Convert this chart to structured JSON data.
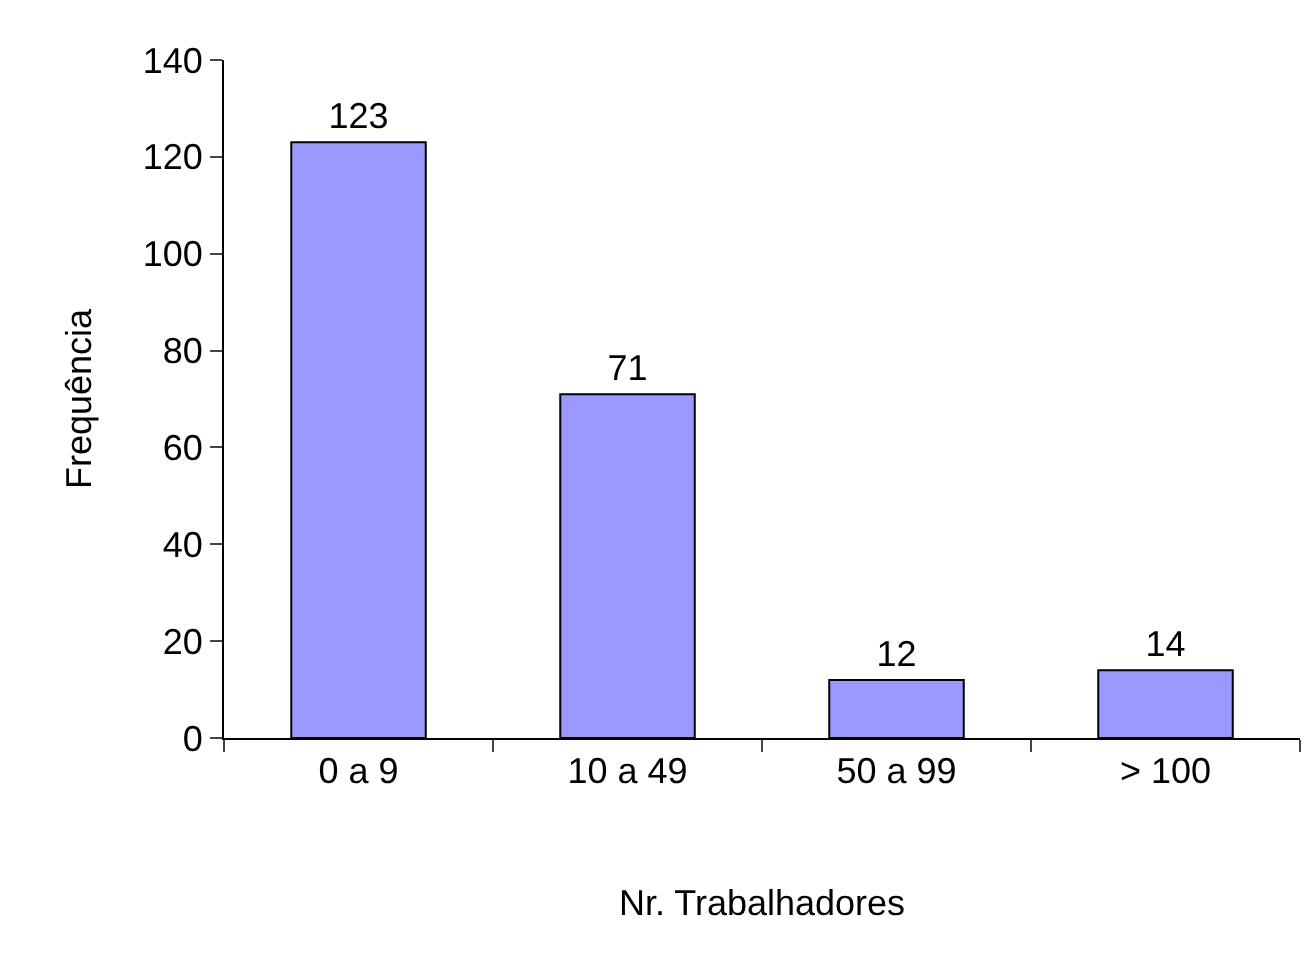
{
  "chart_data": {
    "type": "bar",
    "xlabel": "Nr. Trabalhadores",
    "ylabel": "Frequência",
    "categories": [
      "0 a 9",
      "10 a 49",
      "50 a 99",
      "> 100"
    ],
    "values": [
      123,
      71,
      12,
      14
    ],
    "color": "#9999ff",
    "ylim": [
      0,
      140
    ],
    "yticks": [
      0,
      20,
      40,
      60,
      80,
      100,
      120,
      140
    ],
    "grid": false,
    "data_labels": true
  }
}
